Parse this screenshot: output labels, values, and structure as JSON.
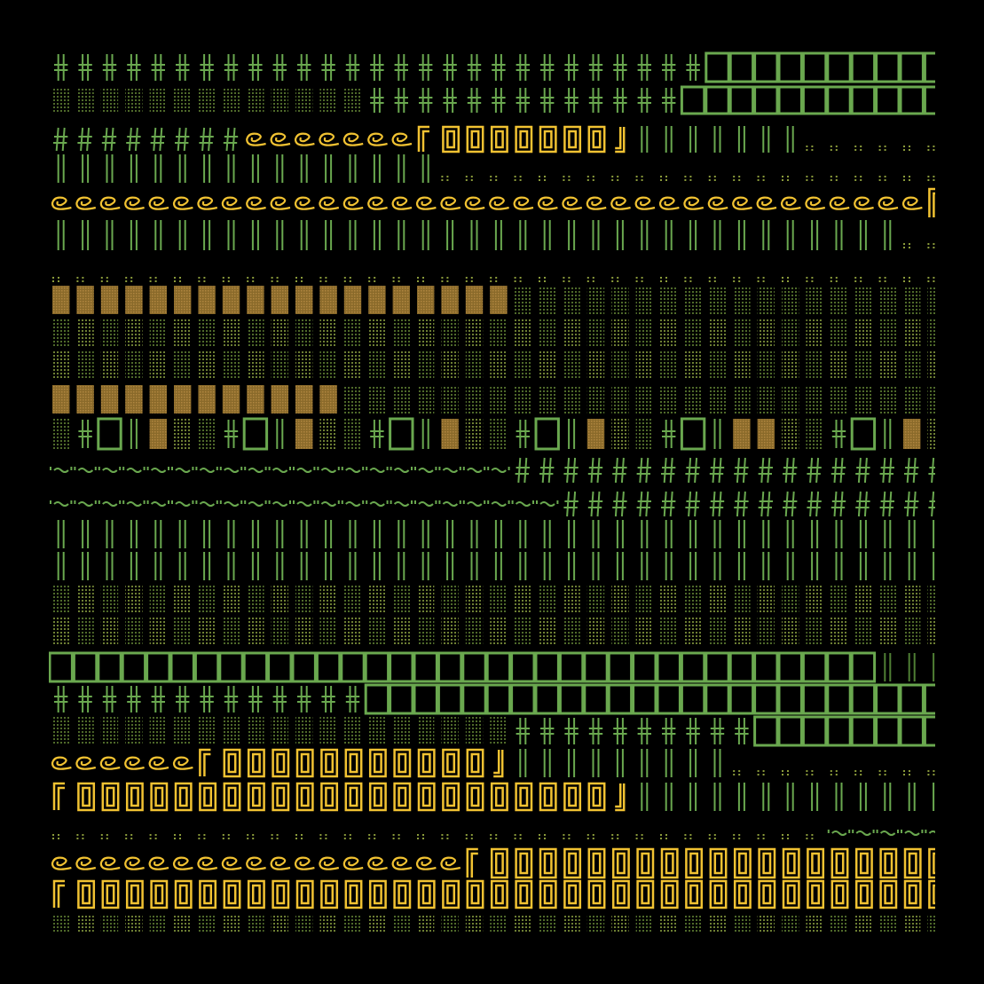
{
  "scene": {
    "kind": "glyph-mosaic",
    "background": "#000000",
    "palette": {
      "green": "#6aa84f",
      "green_dim": "#4f7f34",
      "yellow": "#f1c232",
      "yellow_dim": "#cdb42a",
      "ochre": "#a07a35",
      "olive": "#596a2a",
      "olive_dark": "#3f4f22"
    },
    "glyph_types": [
      "plus-box-icon",
      "hatch-box-icon",
      "hash-icon",
      "curl-icon",
      "yellow-frame-icon",
      "bar-icon",
      "dots-icon",
      "ochre-block-icon",
      "square-outline-icon",
      "tilde-icon",
      "wide-frame-icon"
    ]
  }
}
